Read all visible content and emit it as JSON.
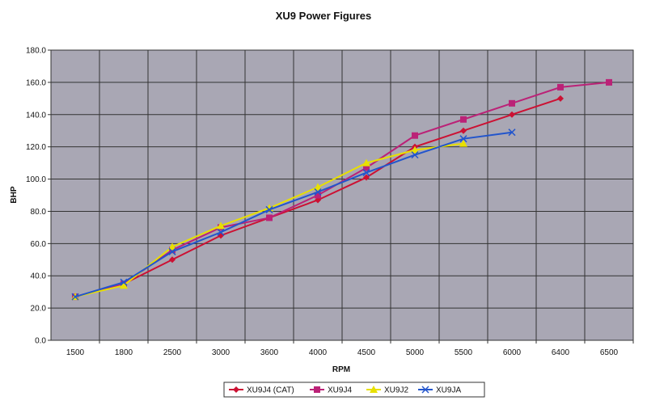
{
  "chart_data": {
    "type": "line",
    "title": "XU9 Power Figures",
    "xlabel": "RPM",
    "ylabel": "BHP",
    "categories": [
      "1500",
      "1800",
      "2500",
      "3000",
      "3600",
      "4000",
      "4500",
      "5000",
      "5500",
      "6000",
      "6400",
      "6500"
    ],
    "ylim": [
      0,
      180
    ],
    "yticks": [
      "0.0",
      "20.0",
      "40.0",
      "60.0",
      "80.0",
      "100.0",
      "120.0",
      "140.0",
      "160.0",
      "180.0"
    ],
    "grid": true,
    "legend_position": "bottom",
    "series": [
      {
        "name": "XU9J4 (CAT)",
        "color": "#cc1133",
        "marker": "diamond",
        "values": [
          27,
          35,
          50,
          65,
          76,
          87,
          101,
          120,
          130,
          140,
          150,
          null
        ]
      },
      {
        "name": "XU9J4",
        "color": "#bb2277",
        "marker": "square",
        "values": [
          27,
          35,
          56,
          70,
          76,
          90,
          107,
          127,
          137,
          147,
          157,
          160
        ]
      },
      {
        "name": "XU9J2",
        "color": "#e8e000",
        "marker": "triangle",
        "values": [
          27,
          34,
          58,
          71,
          82,
          95,
          110,
          118,
          122,
          null,
          null,
          null
        ]
      },
      {
        "name": "XU9JA",
        "color": "#2255cc",
        "marker": "x",
        "values": [
          27,
          36,
          55,
          67,
          81,
          92,
          104,
          115,
          125,
          129,
          null,
          null
        ]
      }
    ]
  }
}
